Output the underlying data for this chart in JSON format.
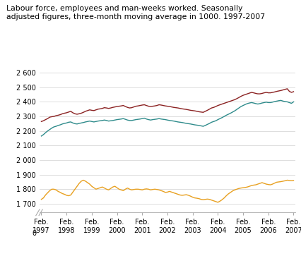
{
  "title": "Labour force, employees and man-weeks worked. Seasonally\nadjusted figures, three-month moving average in 1000. 1997-2007",
  "yticks": [
    1700,
    1800,
    1900,
    2000,
    2100,
    2200,
    2300,
    2400,
    2500,
    2600
  ],
  "ytick_labels": [
    "1 700",
    "1 800",
    "1 900",
    "2 000",
    "2 100",
    "2 200",
    "2 300",
    "2 400",
    "2 500",
    "2 600"
  ],
  "xtick_labels": [
    "Feb.\n1997",
    "Feb.\n1998",
    "Feb.\n1999",
    "Feb.\n2000",
    "Feb.\n2001",
    "Feb.\n2002",
    "Feb.\n2003",
    "Feb.\n2004",
    "Feb.\n2005",
    "Feb.\n2006",
    "Feb.\n2007"
  ],
  "ylim": [
    1640,
    2660
  ],
  "color_labour": "#8B2222",
  "color_employees": "#2E8B8B",
  "color_manweeks": "#E8A020",
  "legend_labels": [
    "Labour force",
    "Employees",
    "Man-weeks worked"
  ],
  "n_points": 121,
  "labour_force": [
    2265,
    2270,
    2278,
    2285,
    2295,
    2298,
    2300,
    2305,
    2308,
    2312,
    2318,
    2322,
    2325,
    2330,
    2335,
    2325,
    2318,
    2315,
    2318,
    2322,
    2328,
    2335,
    2340,
    2345,
    2342,
    2340,
    2345,
    2350,
    2352,
    2355,
    2360,
    2358,
    2355,
    2358,
    2362,
    2365,
    2368,
    2370,
    2372,
    2375,
    2368,
    2362,
    2358,
    2360,
    2365,
    2370,
    2372,
    2375,
    2378,
    2380,
    2375,
    2370,
    2368,
    2370,
    2372,
    2375,
    2380,
    2378,
    2375,
    2372,
    2370,
    2368,
    2365,
    2362,
    2360,
    2358,
    2355,
    2352,
    2350,
    2348,
    2345,
    2342,
    2340,
    2338,
    2335,
    2332,
    2330,
    2328,
    2335,
    2342,
    2350,
    2358,
    2362,
    2368,
    2375,
    2380,
    2385,
    2390,
    2395,
    2400,
    2405,
    2410,
    2415,
    2422,
    2430,
    2438,
    2445,
    2450,
    2455,
    2460,
    2465,
    2462,
    2458,
    2455,
    2455,
    2458,
    2462,
    2465,
    2462,
    2462,
    2465,
    2468,
    2472,
    2475,
    2478,
    2482,
    2486,
    2490,
    2472,
    2465,
    2470
  ],
  "employees": [
    2165,
    2175,
    2188,
    2200,
    2210,
    2220,
    2228,
    2232,
    2238,
    2242,
    2248,
    2252,
    2255,
    2260,
    2262,
    2255,
    2250,
    2248,
    2252,
    2255,
    2258,
    2262,
    2265,
    2268,
    2265,
    2262,
    2265,
    2268,
    2270,
    2272,
    2275,
    2272,
    2268,
    2270,
    2272,
    2275,
    2278,
    2280,
    2282,
    2285,
    2280,
    2275,
    2272,
    2272,
    2275,
    2278,
    2280,
    2282,
    2285,
    2288,
    2282,
    2278,
    2275,
    2278,
    2280,
    2282,
    2285,
    2282,
    2280,
    2278,
    2275,
    2272,
    2270,
    2268,
    2265,
    2262,
    2260,
    2258,
    2255,
    2252,
    2250,
    2248,
    2245,
    2242,
    2240,
    2238,
    2235,
    2232,
    2238,
    2245,
    2252,
    2260,
    2265,
    2270,
    2278,
    2285,
    2292,
    2300,
    2308,
    2315,
    2322,
    2330,
    2338,
    2348,
    2358,
    2368,
    2375,
    2382,
    2388,
    2392,
    2395,
    2392,
    2388,
    2385,
    2388,
    2392,
    2395,
    2398,
    2395,
    2395,
    2398,
    2402,
    2405,
    2408,
    2410,
    2405,
    2402,
    2400,
    2395,
    2390,
    2400
  ],
  "manweeks": [
    1730,
    1740,
    1760,
    1775,
    1790,
    1800,
    1800,
    1795,
    1785,
    1778,
    1770,
    1765,
    1758,
    1755,
    1760,
    1780,
    1800,
    1820,
    1840,
    1855,
    1862,
    1855,
    1845,
    1835,
    1820,
    1810,
    1800,
    1805,
    1810,
    1815,
    1808,
    1800,
    1795,
    1805,
    1815,
    1820,
    1810,
    1800,
    1795,
    1790,
    1800,
    1808,
    1800,
    1795,
    1798,
    1800,
    1800,
    1798,
    1795,
    1800,
    1802,
    1800,
    1795,
    1798,
    1800,
    1798,
    1795,
    1790,
    1785,
    1778,
    1780,
    1785,
    1780,
    1775,
    1770,
    1765,
    1760,
    1758,
    1760,
    1762,
    1758,
    1752,
    1745,
    1740,
    1738,
    1735,
    1730,
    1728,
    1730,
    1732,
    1730,
    1725,
    1720,
    1715,
    1710,
    1718,
    1728,
    1740,
    1755,
    1768,
    1778,
    1788,
    1795,
    1800,
    1805,
    1808,
    1810,
    1812,
    1815,
    1820,
    1825,
    1828,
    1830,
    1835,
    1840,
    1845,
    1840,
    1835,
    1832,
    1830,
    1835,
    1842,
    1848,
    1850,
    1852,
    1855,
    1858,
    1862,
    1860,
    1858,
    1860
  ]
}
